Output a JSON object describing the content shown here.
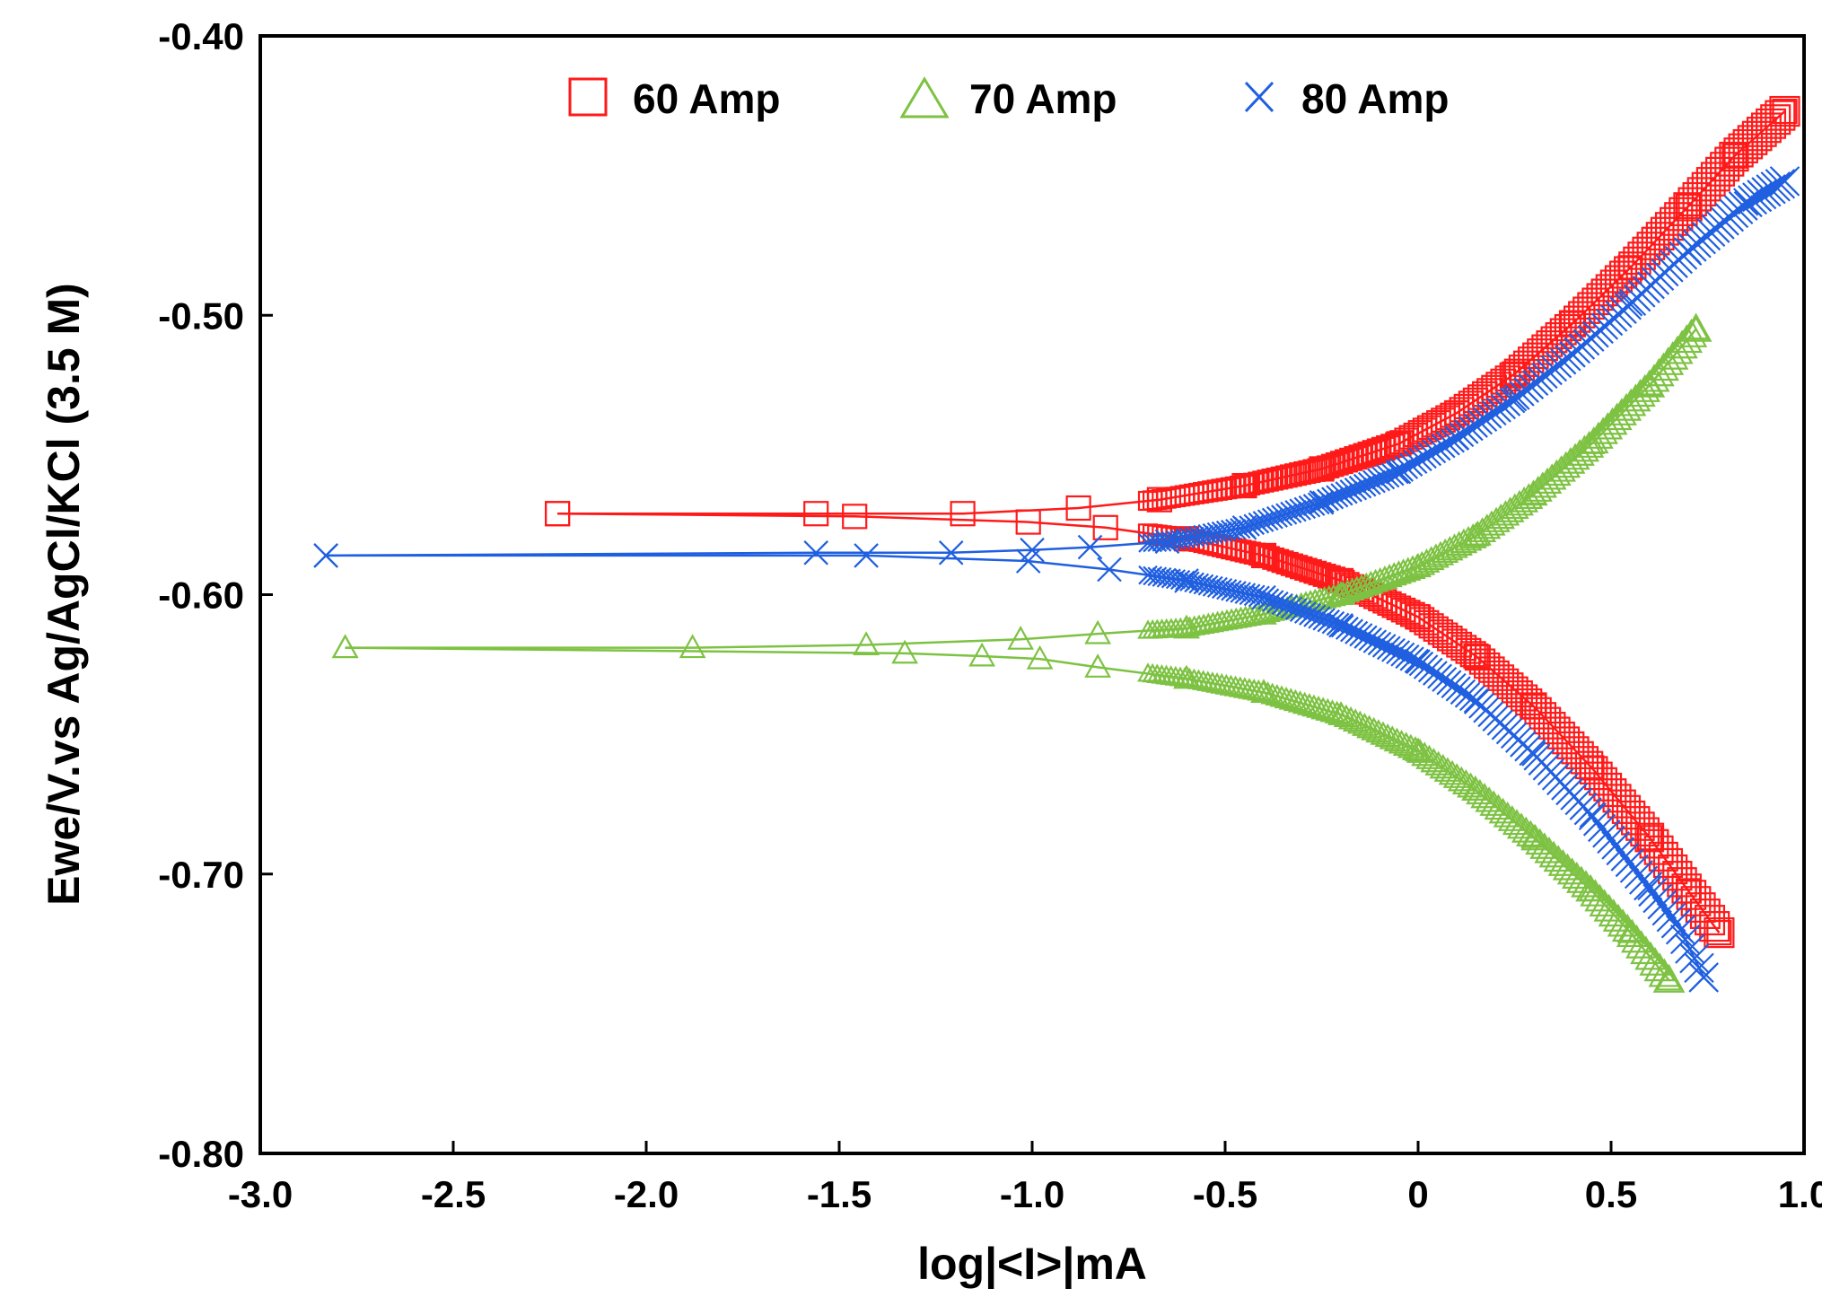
{
  "chart_data": {
    "type": "scatter",
    "title": "",
    "xlabel": "log|<I>|mA",
    "ylabel": "Ewe/V.vs Ag/AgCl/KCl (3.5 M)",
    "xlim": [
      -3.0,
      1.0
    ],
    "ylim": [
      -0.8,
      -0.4
    ],
    "x_ticks": [
      -3.0,
      -2.5,
      -2.0,
      -1.5,
      -1.0,
      -0.5,
      0,
      0.5,
      1.0
    ],
    "x_tick_labels": [
      "-3.0",
      "-2.5",
      "-2.0",
      "-1.5",
      "-1.0",
      "-0.5",
      "0",
      "0.5",
      "1.0"
    ],
    "y_ticks": [
      -0.4,
      -0.5,
      -0.6,
      -0.7,
      -0.8
    ],
    "y_tick_labels": [
      "-0.40",
      "-0.50",
      "-0.60",
      "-0.70",
      "-0.80"
    ],
    "grid": false,
    "legend_position": "top-center",
    "series": [
      {
        "name": "60 Amp",
        "marker": "square",
        "color": "#ff1a1a",
        "corrosion_potential": -0.571,
        "anodic": [
          [
            -2.23,
            -0.571
          ],
          [
            -1.56,
            -0.571
          ],
          [
            -1.18,
            -0.571
          ],
          [
            -0.88,
            -0.569
          ],
          [
            -0.67,
            -0.566
          ],
          [
            -0.45,
            -0.561
          ],
          [
            -0.25,
            -0.555
          ],
          [
            -0.05,
            -0.546
          ],
          [
            0.1,
            -0.535
          ],
          [
            0.25,
            -0.521
          ],
          [
            0.4,
            -0.503
          ],
          [
            0.55,
            -0.483
          ],
          [
            0.7,
            -0.461
          ],
          [
            0.82,
            -0.443
          ],
          [
            0.95,
            -0.427
          ]
        ],
        "cathodic": [
          [
            -2.23,
            -0.571
          ],
          [
            -1.46,
            -0.572
          ],
          [
            -1.01,
            -0.574
          ],
          [
            -0.81,
            -0.576
          ],
          [
            -0.6,
            -0.58
          ],
          [
            -0.4,
            -0.586
          ],
          [
            -0.2,
            -0.595
          ],
          [
            0.0,
            -0.608
          ],
          [
            0.15,
            -0.622
          ],
          [
            0.3,
            -0.64
          ],
          [
            0.45,
            -0.662
          ],
          [
            0.6,
            -0.687
          ],
          [
            0.7,
            -0.706
          ],
          [
            0.78,
            -0.721
          ]
        ]
      },
      {
        "name": "70 Amp",
        "marker": "triangle",
        "color": "#7dc242",
        "corrosion_potential": -0.619,
        "anodic": [
          [
            -2.78,
            -0.619
          ],
          [
            -1.88,
            -0.619
          ],
          [
            -1.43,
            -0.618
          ],
          [
            -1.03,
            -0.616
          ],
          [
            -0.83,
            -0.614
          ],
          [
            -0.6,
            -0.612
          ],
          [
            -0.4,
            -0.607
          ],
          [
            -0.2,
            -0.6
          ],
          [
            0.0,
            -0.59
          ],
          [
            0.15,
            -0.579
          ],
          [
            0.3,
            -0.564
          ],
          [
            0.45,
            -0.546
          ],
          [
            0.6,
            -0.525
          ],
          [
            0.72,
            -0.505
          ]
        ],
        "cathodic": [
          [
            -2.78,
            -0.619
          ],
          [
            -1.33,
            -0.621
          ],
          [
            -1.13,
            -0.622
          ],
          [
            -0.98,
            -0.623
          ],
          [
            -0.83,
            -0.626
          ],
          [
            -0.6,
            -0.63
          ],
          [
            -0.4,
            -0.635
          ],
          [
            -0.2,
            -0.643
          ],
          [
            0.0,
            -0.656
          ],
          [
            0.15,
            -0.67
          ],
          [
            0.3,
            -0.687
          ],
          [
            0.45,
            -0.706
          ],
          [
            0.55,
            -0.721
          ],
          [
            0.65,
            -0.738
          ]
        ]
      },
      {
        "name": "80 Amp",
        "marker": "x",
        "color": "#1f5fe0",
        "corrosion_potential": -0.586,
        "anodic": [
          [
            -2.83,
            -0.586
          ],
          [
            -1.56,
            -0.585
          ],
          [
            -1.21,
            -0.585
          ],
          [
            -1.0,
            -0.584
          ],
          [
            -0.85,
            -0.583
          ],
          [
            -0.65,
            -0.581
          ],
          [
            -0.45,
            -0.576
          ],
          [
            -0.25,
            -0.567
          ],
          [
            -0.05,
            -0.556
          ],
          [
            0.1,
            -0.544
          ],
          [
            0.25,
            -0.53
          ],
          [
            0.4,
            -0.514
          ],
          [
            0.55,
            -0.496
          ],
          [
            0.7,
            -0.477
          ],
          [
            0.85,
            -0.46
          ],
          [
            0.95,
            -0.452
          ]
        ],
        "cathodic": [
          [
            -2.83,
            -0.586
          ],
          [
            -1.43,
            -0.586
          ],
          [
            -1.01,
            -0.588
          ],
          [
            -0.8,
            -0.591
          ],
          [
            -0.6,
            -0.595
          ],
          [
            -0.4,
            -0.601
          ],
          [
            -0.2,
            -0.611
          ],
          [
            0.0,
            -0.624
          ],
          [
            0.15,
            -0.638
          ],
          [
            0.3,
            -0.657
          ],
          [
            0.45,
            -0.679
          ],
          [
            0.6,
            -0.705
          ],
          [
            0.68,
            -0.72
          ],
          [
            0.74,
            -0.737
          ]
        ]
      }
    ]
  }
}
